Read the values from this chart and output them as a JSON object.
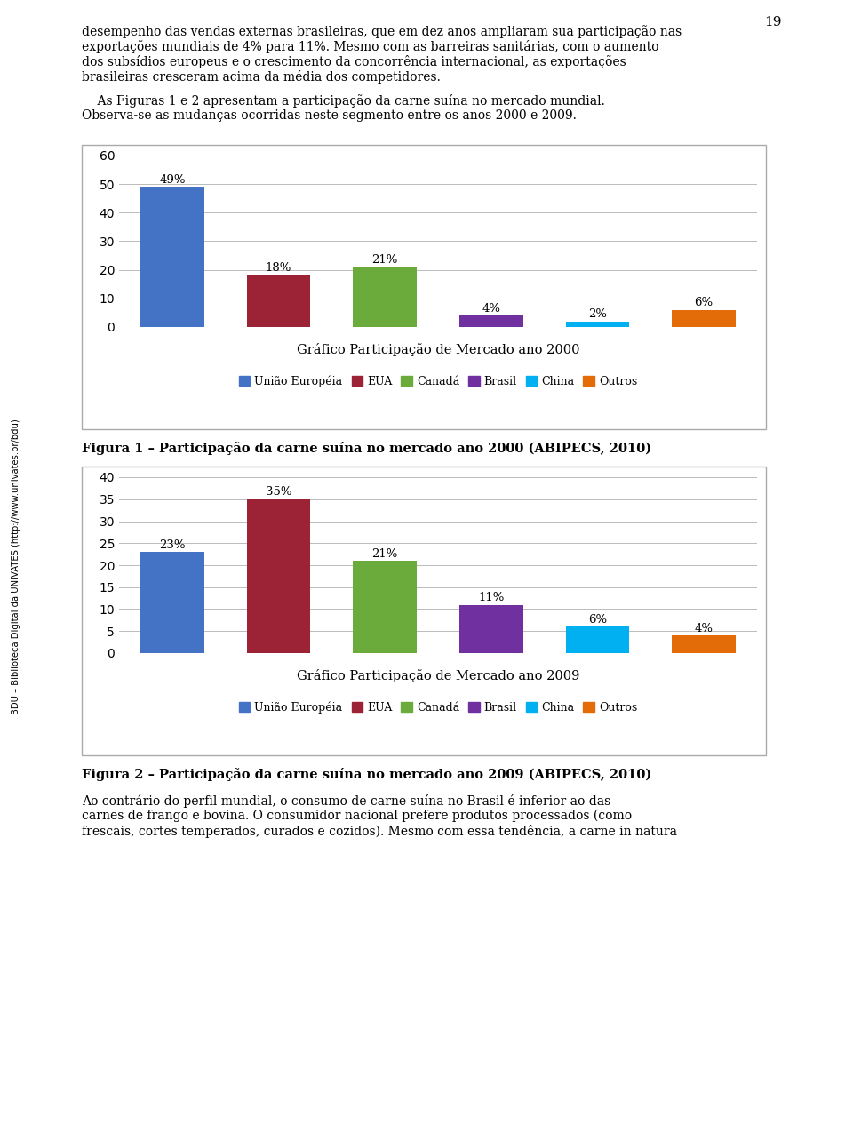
{
  "page_number": "19",
  "text_top": [
    "desempenho das vendas externas brasileiras, que em dez anos ampliaram sua participação nas",
    "exportações mundiais de 4% para 11%. Mesmo com as barreiras sanitárias, com o aumento",
    "dos subsídios europeus e o crescimento da concorrência internacional, as exportações",
    "brasileiras cresceram acima da média dos competidores."
  ],
  "text_intro_indent": "    As Figuras 1 e 2 apresentam a participação da carne suína no mercado mundial.",
  "text_intro_2": "Observa-se as mudanças ocorridas neste segmento entre os anos 2000 e 2009.",
  "chart1": {
    "categories": [
      "União Européia",
      "EUA",
      "Canadá",
      "Brasil",
      "China",
      "Outros"
    ],
    "values": [
      49,
      18,
      21,
      4,
      2,
      6
    ],
    "colors": [
      "#4472C4",
      "#9B2335",
      "#6AAB3B",
      "#7030A0",
      "#00B0F0",
      "#E36C09"
    ],
    "xlabel": "Gráfico Participação de Mercado ano 2000",
    "ylim": [
      0,
      60
    ],
    "yticks": [
      0,
      10,
      20,
      30,
      40,
      50,
      60
    ],
    "labels": [
      "49%",
      "18%",
      "21%",
      "4%",
      "2%",
      "6%"
    ]
  },
  "figure1_caption": "Figura 1 – Participação da carne suína no mercado ano 2000 (ABIPECS, 2010)",
  "chart2": {
    "categories": [
      "União Européia",
      "EUA",
      "Canadá",
      "Brasil",
      "China",
      "Outros"
    ],
    "values": [
      23,
      35,
      21,
      11,
      6,
      4
    ],
    "colors": [
      "#4472C4",
      "#9B2335",
      "#6AAB3B",
      "#7030A0",
      "#00B0F0",
      "#E36C09"
    ],
    "xlabel": "Gráfico Participação de Mercado ano 2009",
    "ylim": [
      0,
      40
    ],
    "yticks": [
      0,
      5,
      10,
      15,
      20,
      25,
      30,
      35,
      40
    ],
    "labels": [
      "23%",
      "35%",
      "21%",
      "11%",
      "6%",
      "4%"
    ]
  },
  "figure2_caption": "Figura 2 – Participação da carne suína no mercado ano 2009 (ABIPECS, 2010)",
  "text_bottom": [
    "Ao contrário do perfil mundial, o consumo de carne suína no Brasil é inferior ao das",
    "carnes de frango e bovina. O consumidor nacional prefere produtos processados (como",
    "frescais, cortes temperados, curados e cozidos). Mesmo com essa tendência, a carne in natura"
  ],
  "text_bottom_italic": "in natura",
  "legend_labels": [
    "União Européia",
    "EUA",
    "Canadá",
    "Brasil",
    "China",
    "Outros"
  ],
  "legend_colors": [
    "#4472C4",
    "#9B2335",
    "#6AAB3B",
    "#7030A0",
    "#00B0F0",
    "#E36C09"
  ],
  "sidebar_text": "BDU – Biblioteca Digital da UNIVATES (http://www.univates.br/bdu)"
}
